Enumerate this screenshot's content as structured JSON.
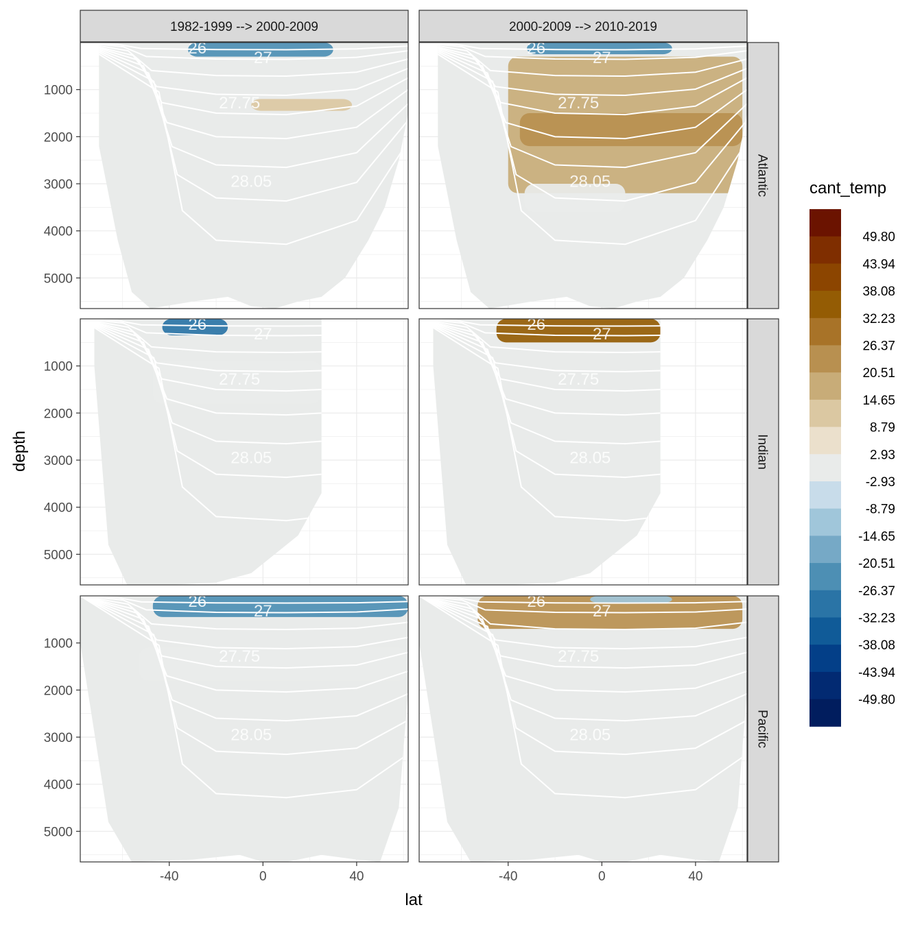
{
  "chart_data": {
    "type": "heatmap",
    "description_axes": "faceted ocean section plots",
    "xlabel": "lat",
    "ylabel": "depth",
    "x_ticks": [
      -40,
      0,
      40
    ],
    "y_ticks": [
      1000,
      2000,
      3000,
      4000,
      5000
    ],
    "x_range": [
      -78,
      62
    ],
    "y_range": [
      5650,
      0
    ],
    "y_reversed": true,
    "facet_columns": [
      "1982-1999 --> 2000-2009",
      "2000-2009 --> 2010-2019"
    ],
    "facet_rows": [
      "Atlantic",
      "Indian",
      "Pacific"
    ],
    "legend": {
      "title": "cant_temp",
      "breaks": [
        "49.80",
        "43.94",
        "38.08",
        "32.23",
        "26.37",
        "20.51",
        "14.65",
        "8.79",
        "2.93",
        "-2.93",
        "-8.79",
        "-14.65",
        "-20.51",
        "-26.37",
        "-32.23",
        "-38.08",
        "-43.94",
        "-49.80"
      ],
      "colors": [
        "#6b1300",
        "#7f2e00",
        "#8c4500",
        "#945c04",
        "#a87328",
        "#b89050",
        "#c8ac78",
        "#dbc8a2",
        "#ebe0cc",
        "#e9ebea",
        "#c8dcea",
        "#a0c6da",
        "#76a9c6",
        "#4d8fb4",
        "#2a74a6",
        "#105b98",
        "#033f88",
        "#022a72",
        "#011d5e"
      ]
    },
    "contour_levels": [
      "26",
      "27",
      "27.75",
      "28.05"
    ],
    "panels": [
      {
        "row": "Atlantic",
        "col": "1982-1999 --> 2000-2009",
        "features": [
          {
            "value": -26.37,
            "lat": [
              -32,
              30
            ],
            "depth": [
              0,
              300
            ],
            "label": "surface negative"
          },
          {
            "value": 8.79,
            "lat": [
              -5,
              38
            ],
            "depth": [
              1200,
              1450
            ],
            "label": "positive band"
          }
        ]
      },
      {
        "row": "Atlantic",
        "col": "2000-2009 --> 2010-2019",
        "features": [
          {
            "value": -26.37,
            "lat": [
              -32,
              30
            ],
            "depth": [
              0,
              250
            ],
            "label": "surface negative"
          },
          {
            "value": 14.65,
            "lat": [
              -40,
              60
            ],
            "depth": [
              300,
              3200
            ],
            "label": "broad positive"
          },
          {
            "value": 20.51,
            "lat": [
              -35,
              60
            ],
            "depth": [
              1500,
              2200
            ],
            "label": "core positive"
          },
          {
            "value": -2.93,
            "lat": [
              -33,
              10
            ],
            "depth": [
              3000,
              3600
            ],
            "label": "deep negative"
          }
        ]
      },
      {
        "row": "Indian",
        "col": "1982-1999 --> 2000-2009",
        "features": [
          {
            "value": -32.23,
            "lat": [
              -43,
              -15
            ],
            "depth": [
              0,
              350
            ],
            "label": "surface negative"
          },
          {
            "value": -2.93,
            "lat": [
              -47,
              25
            ],
            "depth": [
              900,
              1800
            ],
            "label": "intermediate negative"
          }
        ]
      },
      {
        "row": "Indian",
        "col": "2000-2009 --> 2010-2019",
        "features": [
          {
            "value": 32.23,
            "lat": [
              -45,
              25
            ],
            "depth": [
              0,
              500
            ],
            "label": "surface positive"
          }
        ]
      },
      {
        "row": "Pacific",
        "col": "1982-1999 --> 2000-2009",
        "features": [
          {
            "value": -26.37,
            "lat": [
              -47,
              62
            ],
            "depth": [
              0,
              450
            ],
            "label": "surface negative"
          },
          {
            "value": -2.93,
            "lat": [
              -53,
              62
            ],
            "depth": [
              1100,
              1800
            ],
            "label": "intermediate negative"
          }
        ]
      },
      {
        "row": "Pacific",
        "col": "2000-2009 --> 2010-2019",
        "features": [
          {
            "value": 20.51,
            "lat": [
              -53,
              60
            ],
            "depth": [
              0,
              700
            ],
            "label": "surface positive"
          },
          {
            "value": -14.65,
            "lat": [
              -5,
              30
            ],
            "depth": [
              0,
              150
            ],
            "label": "surface negative"
          }
        ]
      }
    ]
  }
}
